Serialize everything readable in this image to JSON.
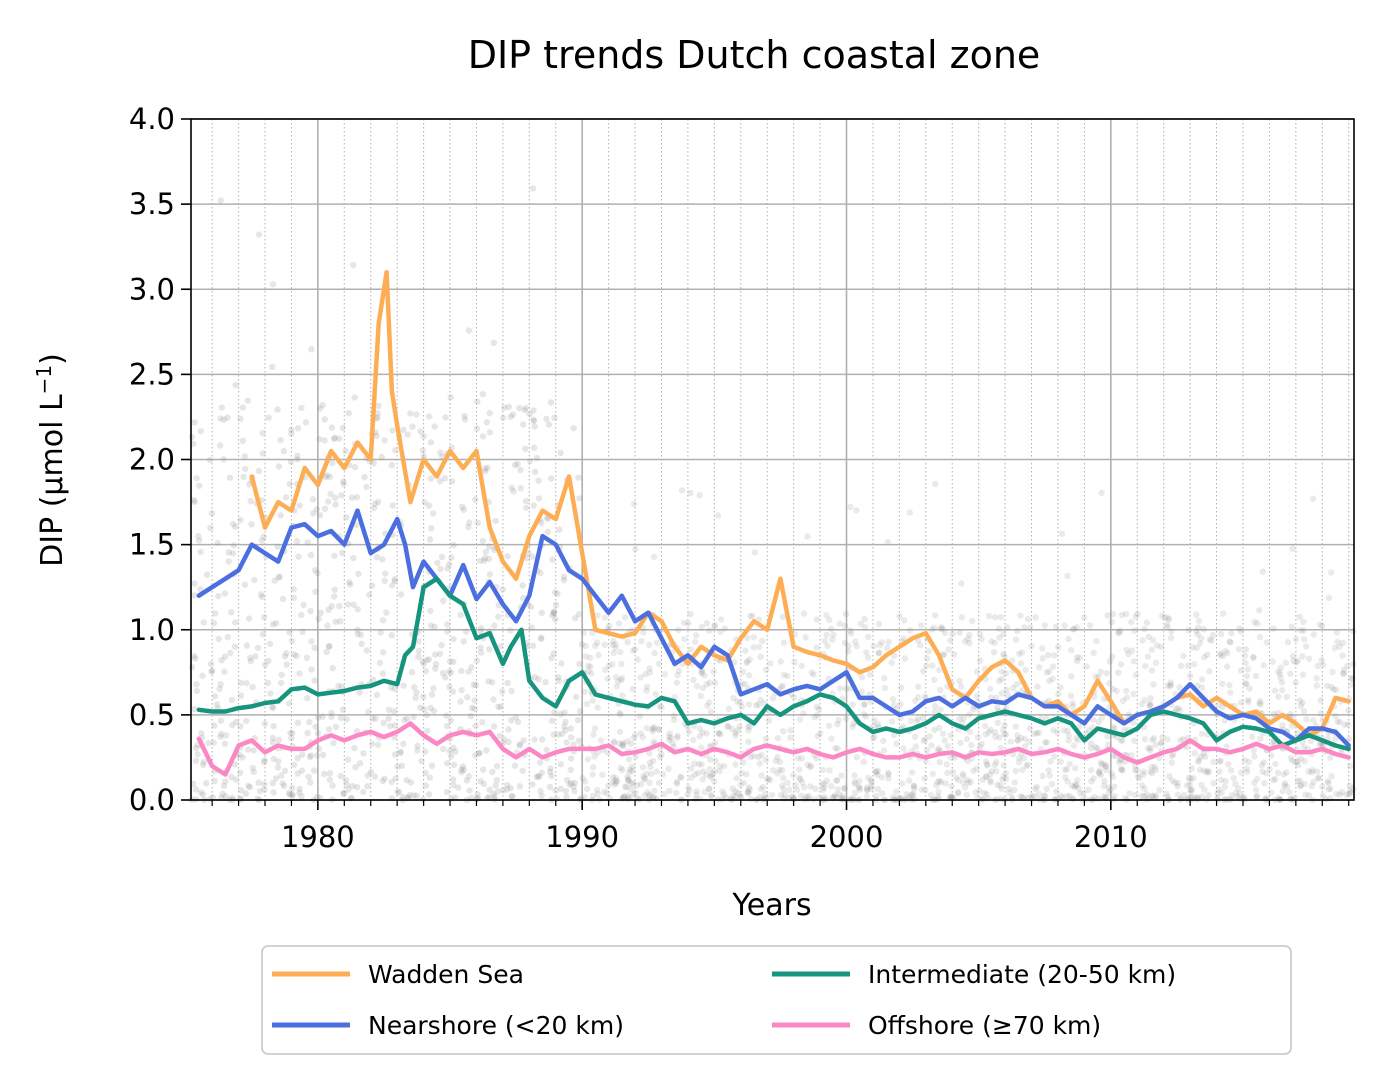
{
  "chart_data": {
    "type": "line",
    "title": "DIP trends Dutch coastal zone",
    "xlabel": "Years",
    "ylabel": "DIP (µmol L",
    "ylabel_sup": "−1",
    "ylabel_tail": ")",
    "xlim": [
      1975.2,
      2019.2
    ],
    "ylim": [
      0,
      4.0
    ],
    "x_ticks": [
      1980,
      1990,
      2000,
      2010
    ],
    "x_tick_labels": [
      "1980",
      "1990",
      "2000",
      "2010"
    ],
    "y_ticks": [
      0,
      0.5,
      1.0,
      1.5,
      2.0,
      2.5,
      3.0,
      3.5,
      4.0
    ],
    "y_tick_labels": [
      "0.0",
      "0.5",
      "1.0",
      "1.5",
      "2.0",
      "2.5",
      "3.0",
      "3.5",
      "4.0"
    ],
    "grid": true,
    "minor_grid_x": "yearly, dotted",
    "background_points": "grey scatter of individual observations, 0–4 µmol L−1, denser before 1990",
    "legend": {
      "placement": "below",
      "columns": 2
    },
    "series": [
      {
        "name": "Wadden Sea",
        "color": "#fdae55",
        "x": [
          1977.5,
          1978.0,
          1978.5,
          1979.0,
          1979.5,
          1980.0,
          1980.5,
          1981.0,
          1981.5,
          1982.0,
          1982.3,
          1982.6,
          1982.8,
          1983.0,
          1983.5,
          1984.0,
          1984.5,
          1985.0,
          1985.5,
          1986.0,
          1986.5,
          1987.0,
          1987.5,
          1988.0,
          1988.5,
          1989.0,
          1989.5,
          1990.0,
          1990.5,
          1991.0,
          1991.5,
          1992.0,
          1992.5,
          1993.0,
          1993.5,
          1994.0,
          1994.5,
          1995.0,
          1995.5,
          1996.0,
          1996.5,
          1997.0,
          1997.5,
          1998.0,
          1998.5,
          1999.0,
          1999.5,
          2000.0,
          2000.5,
          2001.0,
          2001.5,
          2002.0,
          2002.5,
          2003.0,
          2003.5,
          2004.0,
          2004.5,
          2005.0,
          2005.5,
          2006.0,
          2006.5,
          2007.0,
          2007.5,
          2008.0,
          2008.5,
          2009.0,
          2009.5,
          2010.0,
          2010.5,
          2011.0,
          2011.5,
          2012.0,
          2012.5,
          2013.0,
          2013.5,
          2014.0,
          2014.5,
          2015.0,
          2015.5,
          2016.0,
          2016.5,
          2017.0,
          2017.5,
          2018.0,
          2018.5,
          2019.0
        ],
        "values": [
          1.9,
          1.6,
          1.75,
          1.7,
          1.95,
          1.85,
          2.05,
          1.95,
          2.1,
          2.0,
          2.8,
          3.1,
          2.4,
          2.2,
          1.75,
          2.0,
          1.9,
          2.05,
          1.95,
          2.05,
          1.6,
          1.4,
          1.3,
          1.55,
          1.7,
          1.65,
          1.9,
          1.45,
          1.0,
          0.98,
          0.96,
          0.98,
          1.1,
          1.05,
          0.9,
          0.8,
          0.9,
          0.85,
          0.82,
          0.95,
          1.05,
          1.0,
          1.3,
          0.9,
          0.87,
          0.85,
          0.82,
          0.8,
          0.75,
          0.78,
          0.85,
          0.9,
          0.95,
          0.98,
          0.85,
          0.65,
          0.6,
          0.7,
          0.78,
          0.82,
          0.75,
          0.6,
          0.55,
          0.58,
          0.5,
          0.55,
          0.7,
          0.58,
          0.45,
          0.5,
          0.52,
          0.55,
          0.6,
          0.62,
          0.55,
          0.6,
          0.55,
          0.5,
          0.52,
          0.45,
          0.5,
          0.45,
          0.38,
          0.42,
          0.6,
          0.58
        ]
      },
      {
        "name": "Nearshore (<20 km)",
        "color": "#4c6fe0",
        "x": [
          1975.5,
          1976.0,
          1976.5,
          1977.0,
          1977.5,
          1978.0,
          1978.5,
          1979.0,
          1979.5,
          1980.0,
          1980.5,
          1981.0,
          1981.5,
          1982.0,
          1982.5,
          1983.0,
          1983.3,
          1983.6,
          1984.0,
          1984.5,
          1985.0,
          1985.5,
          1986.0,
          1986.5,
          1987.0,
          1987.5,
          1988.0,
          1988.5,
          1989.0,
          1989.5,
          1990.0,
          1990.5,
          1991.0,
          1991.5,
          1992.0,
          1992.5,
          1993.0,
          1993.5,
          1994.0,
          1994.5,
          1995.0,
          1995.5,
          1996.0,
          1996.5,
          1997.0,
          1997.5,
          1998.0,
          1998.5,
          1999.0,
          1999.5,
          2000.0,
          2000.5,
          2001.0,
          2001.5,
          2002.0,
          2002.5,
          2003.0,
          2003.5,
          2004.0,
          2004.5,
          2005.0,
          2005.5,
          2006.0,
          2006.5,
          2007.0,
          2007.5,
          2008.0,
          2008.5,
          2009.0,
          2009.5,
          2010.0,
          2010.5,
          2011.0,
          2011.5,
          2012.0,
          2012.5,
          2013.0,
          2013.5,
          2014.0,
          2014.5,
          2015.0,
          2015.5,
          2016.0,
          2016.5,
          2017.0,
          2017.5,
          2018.0,
          2018.5,
          2019.0
        ],
        "values": [
          1.2,
          1.25,
          1.3,
          1.35,
          1.5,
          1.45,
          1.4,
          1.6,
          1.62,
          1.55,
          1.58,
          1.5,
          1.7,
          1.45,
          1.5,
          1.65,
          1.5,
          1.25,
          1.4,
          1.3,
          1.2,
          1.38,
          1.18,
          1.28,
          1.15,
          1.05,
          1.2,
          1.55,
          1.5,
          1.35,
          1.3,
          1.2,
          1.1,
          1.2,
          1.05,
          1.1,
          0.95,
          0.8,
          0.85,
          0.78,
          0.9,
          0.85,
          0.62,
          0.65,
          0.68,
          0.62,
          0.65,
          0.67,
          0.65,
          0.7,
          0.75,
          0.6,
          0.6,
          0.55,
          0.5,
          0.52,
          0.58,
          0.6,
          0.55,
          0.6,
          0.55,
          0.58,
          0.57,
          0.62,
          0.6,
          0.55,
          0.55,
          0.5,
          0.45,
          0.55,
          0.5,
          0.45,
          0.5,
          0.52,
          0.55,
          0.6,
          0.68,
          0.6,
          0.52,
          0.48,
          0.5,
          0.48,
          0.42,
          0.4,
          0.35,
          0.42,
          0.42,
          0.4,
          0.32
        ]
      },
      {
        "name": "Intermediate (20-50 km)",
        "color": "#17947e",
        "x": [
          1975.5,
          1976.0,
          1976.5,
          1977.0,
          1977.5,
          1978.0,
          1978.5,
          1979.0,
          1979.5,
          1980.0,
          1980.5,
          1981.0,
          1981.5,
          1982.0,
          1982.5,
          1983.0,
          1983.3,
          1983.6,
          1984.0,
          1984.5,
          1985.0,
          1985.5,
          1986.0,
          1986.5,
          1987.0,
          1987.3,
          1987.7,
          1988.0,
          1988.5,
          1989.0,
          1989.5,
          1990.0,
          1990.5,
          1991.0,
          1991.5,
          1992.0,
          1992.5,
          1993.0,
          1993.5,
          1994.0,
          1994.5,
          1995.0,
          1995.5,
          1996.0,
          1996.5,
          1997.0,
          1997.5,
          1998.0,
          1998.5,
          1999.0,
          1999.5,
          2000.0,
          2000.5,
          2001.0,
          2001.5,
          2002.0,
          2002.5,
          2003.0,
          2003.5,
          2004.0,
          2004.5,
          2005.0,
          2005.5,
          2006.0,
          2006.5,
          2007.0,
          2007.5,
          2008.0,
          2008.5,
          2009.0,
          2009.5,
          2010.0,
          2010.5,
          2011.0,
          2011.5,
          2012.0,
          2012.5,
          2013.0,
          2013.5,
          2014.0,
          2014.5,
          2015.0,
          2015.5,
          2016.0,
          2016.5,
          2017.0,
          2017.5,
          2018.0,
          2018.5,
          2019.0
        ],
        "values": [
          0.53,
          0.52,
          0.52,
          0.54,
          0.55,
          0.57,
          0.58,
          0.65,
          0.66,
          0.62,
          0.63,
          0.64,
          0.66,
          0.67,
          0.7,
          0.68,
          0.85,
          0.9,
          1.25,
          1.3,
          1.2,
          1.15,
          0.95,
          0.98,
          0.8,
          0.9,
          1.0,
          0.7,
          0.6,
          0.55,
          0.7,
          0.75,
          0.62,
          0.6,
          0.58,
          0.56,
          0.55,
          0.6,
          0.58,
          0.45,
          0.47,
          0.45,
          0.48,
          0.5,
          0.45,
          0.55,
          0.5,
          0.55,
          0.58,
          0.62,
          0.6,
          0.55,
          0.45,
          0.4,
          0.42,
          0.4,
          0.42,
          0.45,
          0.5,
          0.45,
          0.42,
          0.48,
          0.5,
          0.52,
          0.5,
          0.48,
          0.45,
          0.48,
          0.45,
          0.35,
          0.42,
          0.4,
          0.38,
          0.42,
          0.5,
          0.52,
          0.5,
          0.48,
          0.45,
          0.35,
          0.4,
          0.43,
          0.42,
          0.4,
          0.32,
          0.35,
          0.38,
          0.35,
          0.32,
          0.3
        ]
      },
      {
        "name": "Offshore (≥70 km)",
        "color": "#fb87c5",
        "x": [
          1975.5,
          1976.0,
          1976.5,
          1977.0,
          1977.5,
          1978.0,
          1978.5,
          1979.0,
          1979.5,
          1980.0,
          1980.5,
          1981.0,
          1981.5,
          1982.0,
          1982.5,
          1983.0,
          1983.5,
          1984.0,
          1984.5,
          1985.0,
          1985.5,
          1986.0,
          1986.5,
          1987.0,
          1987.5,
          1988.0,
          1988.5,
          1989.0,
          1989.5,
          1990.0,
          1990.5,
          1991.0,
          1991.5,
          1992.0,
          1992.5,
          1993.0,
          1993.5,
          1994.0,
          1994.5,
          1995.0,
          1995.5,
          1996.0,
          1996.5,
          1997.0,
          1997.5,
          1998.0,
          1998.5,
          1999.0,
          1999.5,
          2000.0,
          2000.5,
          2001.0,
          2001.5,
          2002.0,
          2002.5,
          2003.0,
          2003.5,
          2004.0,
          2004.5,
          2005.0,
          2005.5,
          2006.0,
          2006.5,
          2007.0,
          2007.5,
          2008.0,
          2008.5,
          2009.0,
          2009.5,
          2010.0,
          2010.5,
          2011.0,
          2011.5,
          2012.0,
          2012.5,
          2013.0,
          2013.5,
          2014.0,
          2014.5,
          2015.0,
          2015.5,
          2016.0,
          2016.5,
          2017.0,
          2017.5,
          2018.0,
          2018.5,
          2019.0
        ],
        "values": [
          0.36,
          0.2,
          0.15,
          0.32,
          0.35,
          0.28,
          0.32,
          0.3,
          0.3,
          0.35,
          0.38,
          0.35,
          0.38,
          0.4,
          0.37,
          0.4,
          0.45,
          0.38,
          0.33,
          0.38,
          0.4,
          0.38,
          0.4,
          0.3,
          0.25,
          0.3,
          0.25,
          0.28,
          0.3,
          0.3,
          0.3,
          0.32,
          0.27,
          0.28,
          0.3,
          0.33,
          0.28,
          0.3,
          0.27,
          0.3,
          0.28,
          0.25,
          0.3,
          0.32,
          0.3,
          0.28,
          0.3,
          0.27,
          0.25,
          0.28,
          0.3,
          0.27,
          0.25,
          0.25,
          0.27,
          0.25,
          0.27,
          0.28,
          0.25,
          0.28,
          0.27,
          0.28,
          0.3,
          0.27,
          0.28,
          0.3,
          0.27,
          0.25,
          0.27,
          0.3,
          0.25,
          0.22,
          0.25,
          0.28,
          0.3,
          0.35,
          0.3,
          0.3,
          0.28,
          0.3,
          0.33,
          0.3,
          0.32,
          0.28,
          0.28,
          0.3,
          0.27,
          0.25
        ]
      }
    ]
  }
}
